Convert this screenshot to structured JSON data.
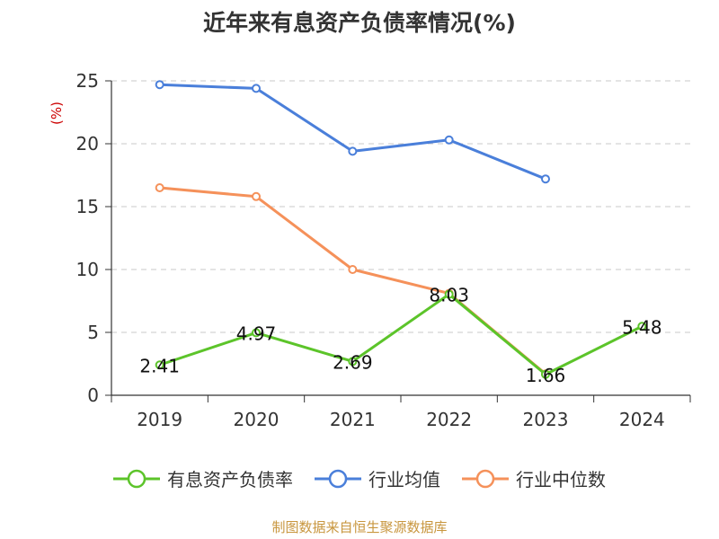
{
  "chart_data": {
    "type": "line",
    "title": "近年来有息资产负债率情况(%)",
    "ylabel": "(%)",
    "xlabel": "",
    "categories": [
      "2019",
      "2020",
      "2021",
      "2022",
      "2023",
      "2024"
    ],
    "ylim": [
      0,
      25
    ],
    "yticks": [
      0,
      5,
      10,
      15,
      20,
      25
    ],
    "grid": true,
    "legend_position": "bottom",
    "series": [
      {
        "name": "有息资产负债率",
        "color": "#5cc42a",
        "values": [
          2.41,
          4.97,
          2.69,
          8.03,
          1.66,
          5.48
        ],
        "labels": [
          "2.41",
          "4.97",
          "2.69",
          "8.03",
          "1.66",
          "5.48"
        ]
      },
      {
        "name": "行业均值",
        "color": "#4a7fda",
        "values": [
          24.7,
          24.4,
          19.4,
          20.3,
          17.2,
          null
        ]
      },
      {
        "name": "行业中位数",
        "color": "#f5915a",
        "values": [
          16.5,
          15.8,
          10.0,
          8.1,
          1.7,
          null
        ]
      }
    ]
  },
  "source": "制图数据来自恒生聚源数据库"
}
